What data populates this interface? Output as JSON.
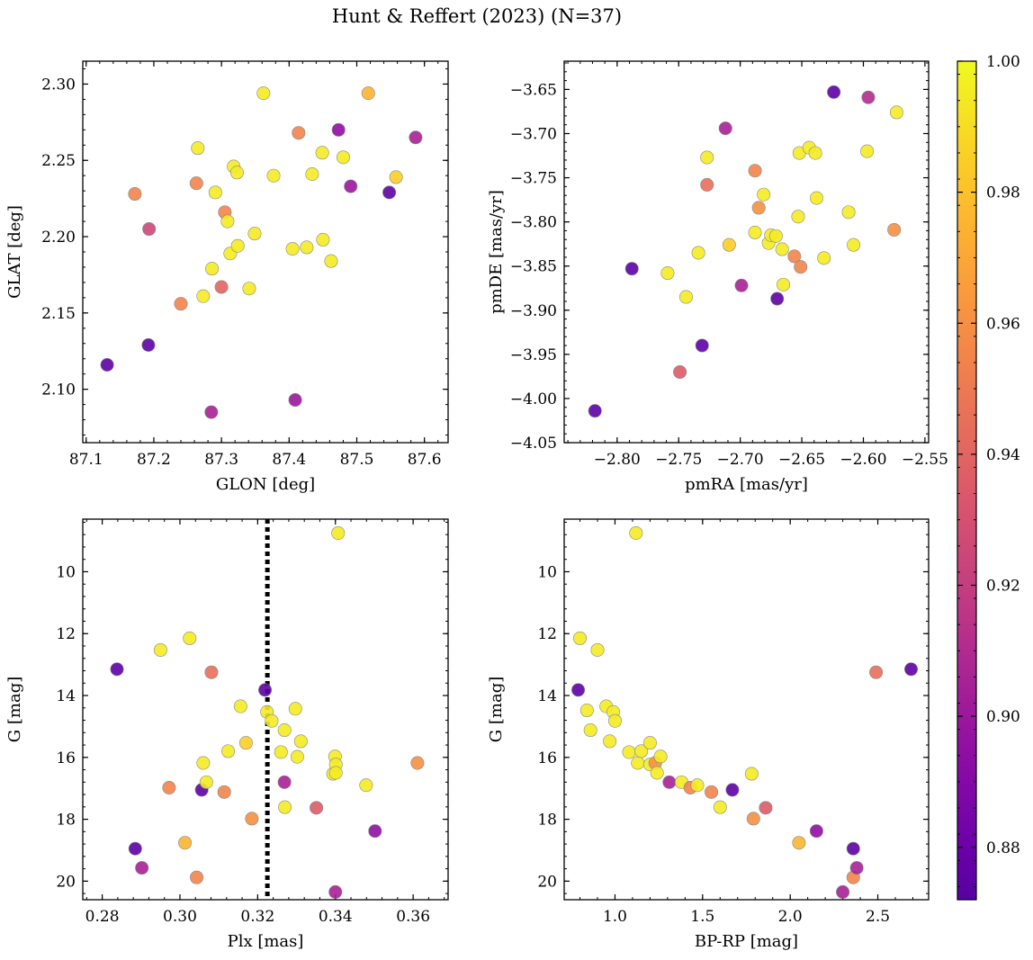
{
  "figure": {
    "title": "Hunt & Reffert (2023) (N=37)"
  },
  "colorbar": {
    "colormap": "plasma",
    "range": [
      0.872,
      1.0
    ],
    "ticks": [
      "0.88",
      "0.90",
      "0.92",
      "0.94",
      "0.96",
      "0.98",
      "1.00"
    ],
    "tick_values": [
      0.88,
      0.9,
      0.92,
      0.94,
      0.96,
      0.98,
      1.0
    ]
  },
  "chart_data": [
    {
      "type": "scatter",
      "xlabel": "GLON [deg]",
      "ylabel": "GLAT [deg]",
      "xlim": [
        87.095,
        87.635
      ],
      "ylim": [
        2.065,
        2.315
      ],
      "x_ticks": [
        "87.1",
        "87.2",
        "87.3",
        "87.4",
        "87.5",
        "87.6"
      ],
      "x_tick_values": [
        87.1,
        87.2,
        87.3,
        87.4,
        87.5,
        87.6
      ],
      "y_ticks": [
        "2.10",
        "2.15",
        "2.20",
        "2.25",
        "2.30"
      ],
      "y_tick_values": [
        2.1,
        2.15,
        2.2,
        2.25,
        2.3
      ],
      "points": [
        {
          "x": 87.131,
          "y": 2.116,
          "c": 0.875
        },
        {
          "x": 87.192,
          "y": 2.129,
          "c": 0.875
        },
        {
          "x": 87.172,
          "y": 2.228,
          "c": 0.955
        },
        {
          "x": 87.193,
          "y": 2.205,
          "c": 0.925
        },
        {
          "x": 87.24,
          "y": 2.156,
          "c": 0.955
        },
        {
          "x": 87.263,
          "y": 2.235,
          "c": 0.955
        },
        {
          "x": 87.265,
          "y": 2.258,
          "c": 0.995
        },
        {
          "x": 87.273,
          "y": 2.161,
          "c": 0.995
        },
        {
          "x": 87.285,
          "y": 2.085,
          "c": 0.905
        },
        {
          "x": 87.286,
          "y": 2.179,
          "c": 0.995
        },
        {
          "x": 87.291,
          "y": 2.229,
          "c": 0.995
        },
        {
          "x": 87.3,
          "y": 2.167,
          "c": 0.94
        },
        {
          "x": 87.305,
          "y": 2.216,
          "c": 0.955
        },
        {
          "x": 87.309,
          "y": 2.21,
          "c": 0.995
        },
        {
          "x": 87.313,
          "y": 2.189,
          "c": 0.995
        },
        {
          "x": 87.318,
          "y": 2.246,
          "c": 0.995
        },
        {
          "x": 87.323,
          "y": 2.242,
          "c": 0.995
        },
        {
          "x": 87.324,
          "y": 2.194,
          "c": 0.995
        },
        {
          "x": 87.341,
          "y": 2.166,
          "c": 0.995
        },
        {
          "x": 87.349,
          "y": 2.202,
          "c": 0.995
        },
        {
          "x": 87.362,
          "y": 2.294,
          "c": 0.995
        },
        {
          "x": 87.377,
          "y": 2.24,
          "c": 0.995
        },
        {
          "x": 87.405,
          "y": 2.192,
          "c": 0.995
        },
        {
          "x": 87.409,
          "y": 2.093,
          "c": 0.9
        },
        {
          "x": 87.414,
          "y": 2.268,
          "c": 0.955
        },
        {
          "x": 87.426,
          "y": 2.193,
          "c": 0.995
        },
        {
          "x": 87.434,
          "y": 2.241,
          "c": 0.995
        },
        {
          "x": 87.449,
          "y": 2.255,
          "c": 0.995
        },
        {
          "x": 87.45,
          "y": 2.198,
          "c": 0.995
        },
        {
          "x": 87.462,
          "y": 2.184,
          "c": 0.995
        },
        {
          "x": 87.473,
          "y": 2.27,
          "c": 0.895
        },
        {
          "x": 87.48,
          "y": 2.252,
          "c": 0.995
        },
        {
          "x": 87.491,
          "y": 2.233,
          "c": 0.9
        },
        {
          "x": 87.517,
          "y": 2.294,
          "c": 0.975
        },
        {
          "x": 87.548,
          "y": 2.229,
          "c": 0.875
        },
        {
          "x": 87.558,
          "y": 2.239,
          "c": 0.985
        },
        {
          "x": 87.587,
          "y": 2.265,
          "c": 0.905
        }
      ]
    },
    {
      "type": "scatter",
      "xlabel": "pmRA [mas/yr]",
      "ylabel": "pmDE [mas/yr]",
      "xlim": [
        -2.843,
        -2.547
      ],
      "ylim": [
        -4.05,
        -3.618
      ],
      "x_ticks": [
        "−2.80",
        "−2.75",
        "−2.70",
        "−2.65",
        "−2.60",
        "−2.55"
      ],
      "x_tick_values": [
        -2.8,
        -2.75,
        -2.7,
        -2.65,
        -2.6,
        -2.55
      ],
      "y_ticks": [
        "−4.05",
        "−4.00",
        "−3.95",
        "−3.90",
        "−3.85",
        "−3.80",
        "−3.75",
        "−3.70",
        "−3.65"
      ],
      "y_tick_values": [
        -4.05,
        -4.0,
        -3.95,
        -3.9,
        -3.85,
        -3.8,
        -3.75,
        -3.7,
        -3.65
      ],
      "points": [
        {
          "x": -2.818,
          "y": -4.014,
          "c": 0.875
        },
        {
          "x": -2.788,
          "y": -3.853,
          "c": 0.875
        },
        {
          "x": -2.759,
          "y": -3.858,
          "c": 0.995
        },
        {
          "x": -2.749,
          "y": -3.97,
          "c": 0.935
        },
        {
          "x": -2.744,
          "y": -3.885,
          "c": 0.995
        },
        {
          "x": -2.734,
          "y": -3.835,
          "c": 0.995
        },
        {
          "x": -2.731,
          "y": -3.94,
          "c": 0.875
        },
        {
          "x": -2.727,
          "y": -3.727,
          "c": 0.995
        },
        {
          "x": -2.727,
          "y": -3.758,
          "c": 0.945
        },
        {
          "x": -2.712,
          "y": -3.694,
          "c": 0.905
        },
        {
          "x": -2.709,
          "y": -3.826,
          "c": 0.985
        },
        {
          "x": -2.699,
          "y": -3.872,
          "c": 0.905
        },
        {
          "x": -2.688,
          "y": -3.742,
          "c": 0.955
        },
        {
          "x": -2.688,
          "y": -3.812,
          "c": 0.995
        },
        {
          "x": -2.685,
          "y": -3.784,
          "c": 0.96
        },
        {
          "x": -2.681,
          "y": -3.769,
          "c": 0.995
        },
        {
          "x": -2.677,
          "y": -3.824,
          "c": 0.995
        },
        {
          "x": -2.675,
          "y": -3.815,
          "c": 0.995
        },
        {
          "x": -2.671,
          "y": -3.816,
          "c": 0.995
        },
        {
          "x": -2.67,
          "y": -3.887,
          "c": 0.875
        },
        {
          "x": -2.666,
          "y": -3.831,
          "c": 0.995
        },
        {
          "x": -2.665,
          "y": -3.871,
          "c": 0.995
        },
        {
          "x": -2.656,
          "y": -3.839,
          "c": 0.955
        },
        {
          "x": -2.653,
          "y": -3.794,
          "c": 0.995
        },
        {
          "x": -2.652,
          "y": -3.722,
          "c": 0.995
        },
        {
          "x": -2.651,
          "y": -3.851,
          "c": 0.955
        },
        {
          "x": -2.644,
          "y": -3.716,
          "c": 0.995
        },
        {
          "x": -2.639,
          "y": -3.722,
          "c": 0.995
        },
        {
          "x": -2.638,
          "y": -3.773,
          "c": 0.995
        },
        {
          "x": -2.632,
          "y": -3.841,
          "c": 0.995
        },
        {
          "x": -2.624,
          "y": -3.653,
          "c": 0.875
        },
        {
          "x": -2.612,
          "y": -3.789,
          "c": 0.995
        },
        {
          "x": -2.608,
          "y": -3.826,
          "c": 0.995
        },
        {
          "x": -2.597,
          "y": -3.72,
          "c": 0.995
        },
        {
          "x": -2.596,
          "y": -3.659,
          "c": 0.91
        },
        {
          "x": -2.575,
          "y": -3.809,
          "c": 0.96
        },
        {
          "x": -2.573,
          "y": -3.676,
          "c": 0.995
        }
      ]
    },
    {
      "type": "scatter",
      "xlabel": "Plx [mas]",
      "ylabel": "G [mag]",
      "xlim": [
        0.275,
        0.369
      ],
      "ylim": [
        20.6,
        8.3
      ],
      "y_inverted": true,
      "vline": {
        "x": 0.3225,
        "style": "dotted",
        "color": "#000000"
      },
      "x_ticks": [
        "0.28",
        "0.30",
        "0.32",
        "0.34",
        "0.36"
      ],
      "x_tick_values": [
        0.28,
        0.3,
        0.32,
        0.34,
        0.36
      ],
      "y_ticks": [
        "10",
        "12",
        "14",
        "16",
        "18",
        "20"
      ],
      "y_tick_values": [
        10,
        12,
        14,
        16,
        18,
        20
      ],
      "points": [
        {
          "x": 0.2838,
          "y": 13.15,
          "c": 0.875
        },
        {
          "x": 0.2885,
          "y": 18.95,
          "c": 0.875
        },
        {
          "x": 0.2902,
          "y": 19.57,
          "c": 0.905
        },
        {
          "x": 0.295,
          "y": 12.53,
          "c": 0.995
        },
        {
          "x": 0.2972,
          "y": 16.98,
          "c": 0.955
        },
        {
          "x": 0.3013,
          "y": 18.76,
          "c": 0.975
        },
        {
          "x": 0.3025,
          "y": 12.15,
          "c": 0.995
        },
        {
          "x": 0.3043,
          "y": 19.88,
          "c": 0.955
        },
        {
          "x": 0.3056,
          "y": 17.05,
          "c": 0.875
        },
        {
          "x": 0.306,
          "y": 16.18,
          "c": 0.995
        },
        {
          "x": 0.3068,
          "y": 16.8,
          "c": 0.995
        },
        {
          "x": 0.3081,
          "y": 13.25,
          "c": 0.945
        },
        {
          "x": 0.3114,
          "y": 17.12,
          "c": 0.955
        },
        {
          "x": 0.3124,
          "y": 15.8,
          "c": 0.995
        },
        {
          "x": 0.3156,
          "y": 14.35,
          "c": 0.995
        },
        {
          "x": 0.317,
          "y": 15.53,
          "c": 0.985
        },
        {
          "x": 0.3185,
          "y": 17.98,
          "c": 0.96
        },
        {
          "x": 0.3219,
          "y": 13.82,
          "c": 0.875
        },
        {
          "x": 0.3224,
          "y": 14.53,
          "c": 0.995
        },
        {
          "x": 0.3236,
          "y": 14.82,
          "c": 0.995
        },
        {
          "x": 0.326,
          "y": 15.83,
          "c": 0.995
        },
        {
          "x": 0.3269,
          "y": 15.12,
          "c": 0.995
        },
        {
          "x": 0.3269,
          "y": 16.8,
          "c": 0.905
        },
        {
          "x": 0.327,
          "y": 17.61,
          "c": 0.995
        },
        {
          "x": 0.3297,
          "y": 14.43,
          "c": 0.995
        },
        {
          "x": 0.3302,
          "y": 15.98,
          "c": 0.995
        },
        {
          "x": 0.3311,
          "y": 15.48,
          "c": 0.995
        },
        {
          "x": 0.3351,
          "y": 17.63,
          "c": 0.935
        },
        {
          "x": 0.3394,
          "y": 16.53,
          "c": 0.995
        },
        {
          "x": 0.3399,
          "y": 15.97,
          "c": 0.995
        },
        {
          "x": 0.3401,
          "y": 16.23,
          "c": 0.995
        },
        {
          "x": 0.3401,
          "y": 16.5,
          "c": 0.995
        },
        {
          "x": 0.34,
          "y": 20.35,
          "c": 0.905
        },
        {
          "x": 0.3407,
          "y": 8.75,
          "c": 0.995
        },
        {
          "x": 0.3479,
          "y": 16.9,
          "c": 0.995
        },
        {
          "x": 0.3502,
          "y": 18.38,
          "c": 0.895
        },
        {
          "x": 0.3611,
          "y": 16.18,
          "c": 0.96
        }
      ]
    },
    {
      "type": "scatter",
      "xlabel": "BP-RP [mag]",
      "ylabel": "G [mag]",
      "xlim": [
        0.71,
        2.79
      ],
      "ylim": [
        20.6,
        8.3
      ],
      "y_inverted": true,
      "x_ticks": [
        "1.0",
        "1.5",
        "2.0",
        "2.5"
      ],
      "x_tick_values": [
        1.0,
        1.5,
        2.0,
        2.5
      ],
      "y_ticks": [
        "10",
        "12",
        "14",
        "16",
        "18",
        "20"
      ],
      "y_tick_values": [
        10,
        12,
        14,
        16,
        18,
        20
      ],
      "points": [
        {
          "x": 0.79,
          "y": 13.82,
          "c": 0.875
        },
        {
          "x": 0.8,
          "y": 12.15,
          "c": 0.995
        },
        {
          "x": 0.84,
          "y": 14.48,
          "c": 0.995
        },
        {
          "x": 0.86,
          "y": 15.12,
          "c": 0.995
        },
        {
          "x": 0.9,
          "y": 12.53,
          "c": 0.995
        },
        {
          "x": 0.95,
          "y": 14.35,
          "c": 0.995
        },
        {
          "x": 0.97,
          "y": 15.48,
          "c": 0.995
        },
        {
          "x": 0.99,
          "y": 14.53,
          "c": 0.995
        },
        {
          "x": 1.0,
          "y": 14.82,
          "c": 0.995
        },
        {
          "x": 1.08,
          "y": 15.83,
          "c": 0.995
        },
        {
          "x": 1.12,
          "y": 8.75,
          "c": 0.995
        },
        {
          "x": 1.13,
          "y": 16.18,
          "c": 0.995
        },
        {
          "x": 1.15,
          "y": 15.8,
          "c": 0.995
        },
        {
          "x": 1.2,
          "y": 15.53,
          "c": 0.995
        },
        {
          "x": 1.2,
          "y": 16.23,
          "c": 0.995
        },
        {
          "x": 1.23,
          "y": 16.18,
          "c": 0.96
        },
        {
          "x": 1.24,
          "y": 16.5,
          "c": 0.995
        },
        {
          "x": 1.26,
          "y": 15.97,
          "c": 0.995
        },
        {
          "x": 1.31,
          "y": 16.8,
          "c": 0.905
        },
        {
          "x": 1.38,
          "y": 16.8,
          "c": 0.995
        },
        {
          "x": 1.43,
          "y": 16.98,
          "c": 0.955
        },
        {
          "x": 1.47,
          "y": 16.9,
          "c": 0.995
        },
        {
          "x": 1.55,
          "y": 17.12,
          "c": 0.955
        },
        {
          "x": 1.6,
          "y": 17.61,
          "c": 0.995
        },
        {
          "x": 1.67,
          "y": 17.05,
          "c": 0.875
        },
        {
          "x": 1.78,
          "y": 16.53,
          "c": 0.995
        },
        {
          "x": 1.79,
          "y": 17.98,
          "c": 0.96
        },
        {
          "x": 1.86,
          "y": 17.63,
          "c": 0.935
        },
        {
          "x": 2.05,
          "y": 18.76,
          "c": 0.975
        },
        {
          "x": 2.15,
          "y": 18.38,
          "c": 0.895
        },
        {
          "x": 2.3,
          "y": 20.35,
          "c": 0.905
        },
        {
          "x": 2.36,
          "y": 18.95,
          "c": 0.875
        },
        {
          "x": 2.36,
          "y": 19.88,
          "c": 0.955
        },
        {
          "x": 2.38,
          "y": 19.57,
          "c": 0.905
        },
        {
          "x": 2.49,
          "y": 13.25,
          "c": 0.945
        },
        {
          "x": 2.69,
          "y": 13.15,
          "c": 0.875
        }
      ]
    }
  ]
}
